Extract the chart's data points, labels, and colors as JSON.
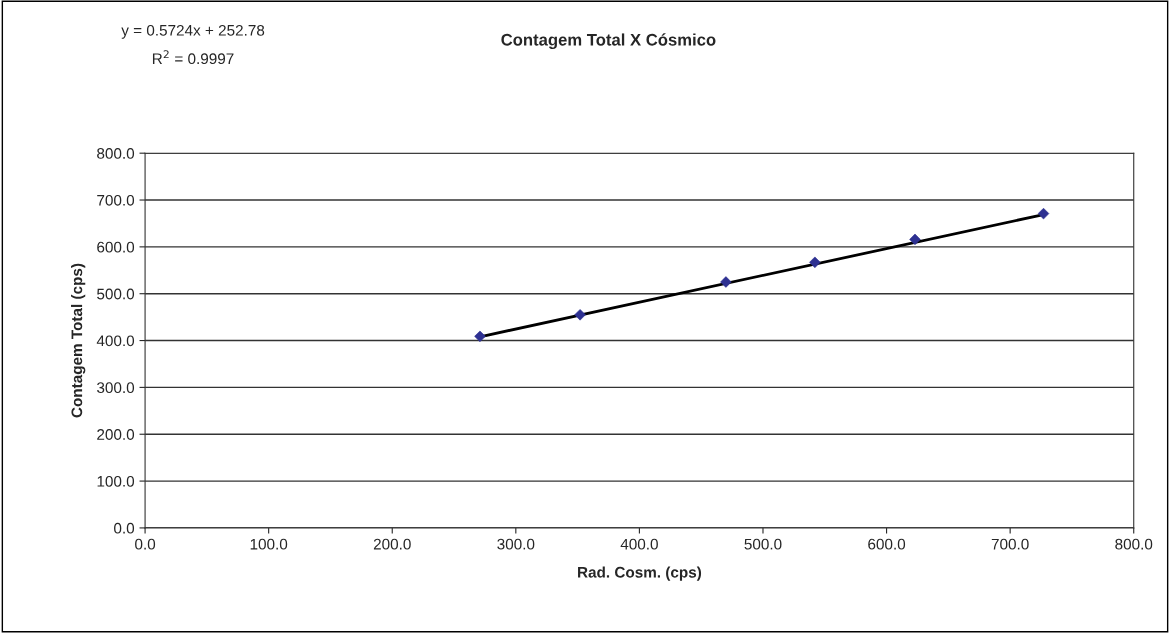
{
  "chart_data": {
    "type": "scatter",
    "title": "Contagem Total X Cósmico",
    "xlabel": "Rad. Cosm. (cps)",
    "ylabel": "Contagem Total (cps)",
    "annotations": [
      "y = 0.5724x + 252.78",
      "R$^{2}$ = 0.9997"
    ],
    "series": [
      {
        "color": "#2e3192",
        "marker": "diamond",
        "x": [
          271,
          352,
          470,
          542,
          623,
          727
        ],
        "values": [
          409,
          455,
          525,
          567,
          616,
          671
        ]
      },
      {
        "type": "line",
        "color": "#000000",
        "marker": "none",
        "line_style": "solid",
        "x": [
          271,
          727
        ],
        "values": [
          408,
          669
        ]
      }
    ],
    "xlim": [
      0,
      800
    ],
    "xticks": [
      {
        "value": 0,
        "label": "0.0"
      },
      {
        "value": 100,
        "label": "100.0"
      },
      {
        "value": 200,
        "label": "200.0"
      },
      {
        "value": 300,
        "label": "300.0"
      },
      {
        "value": 400,
        "label": "400.0"
      },
      {
        "value": 500,
        "label": "500.0"
      },
      {
        "value": 600,
        "label": "600.0"
      },
      {
        "value": 700,
        "label": "700.0"
      },
      {
        "value": 800,
        "label": "800.0"
      }
    ],
    "ylim": [
      0,
      800
    ],
    "yticks": [
      {
        "value": 0,
        "label": "0.0"
      },
      {
        "value": 100,
        "label": "100.0"
      },
      {
        "value": 200,
        "label": "200.0"
      },
      {
        "value": 300,
        "label": "300.0"
      },
      {
        "value": 400,
        "label": "400.0"
      },
      {
        "value": 500,
        "label": "500.0"
      },
      {
        "value": 600,
        "label": "600.0"
      },
      {
        "value": 700,
        "label": "700.0"
      },
      {
        "value": 800,
        "label": "800.0"
      }
    ],
    "grid": "y"
  }
}
